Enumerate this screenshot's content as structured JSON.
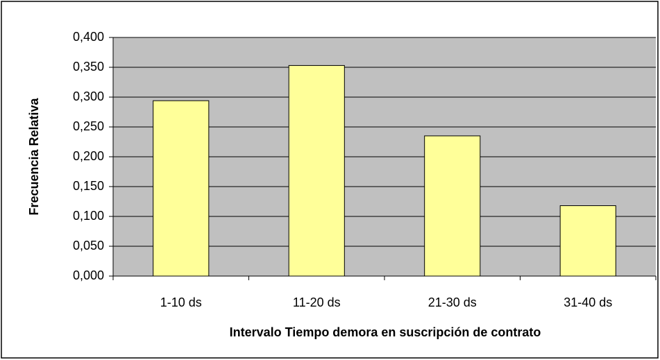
{
  "chart_data": {
    "type": "bar",
    "x_label": "Intervalo Tiempo demora en suscripción de contrato",
    "y_label": "Frecuencia Relativa",
    "categories": [
      "1-10 ds",
      "11-20 ds",
      "21-30 ds",
      "31-40 ds"
    ],
    "values": [
      0.294,
      0.353,
      0.235,
      0.118
    ],
    "color": "#ffff99",
    "ylim": [
      0,
      0.4
    ],
    "yticks": [
      {
        "value": 0,
        "label": "0,000"
      },
      {
        "value": 0.05,
        "label": "0,050"
      },
      {
        "value": 0.1,
        "label": "0,100"
      },
      {
        "value": 0.15,
        "label": "0,150"
      },
      {
        "value": 0.2,
        "label": "0,200"
      },
      {
        "value": 0.25,
        "label": "0,250"
      },
      {
        "value": 0.3,
        "label": "0,300"
      },
      {
        "value": 0.35,
        "label": "0,350"
      },
      {
        "value": 0.4,
        "label": "0,400"
      }
    ],
    "grid": true
  }
}
